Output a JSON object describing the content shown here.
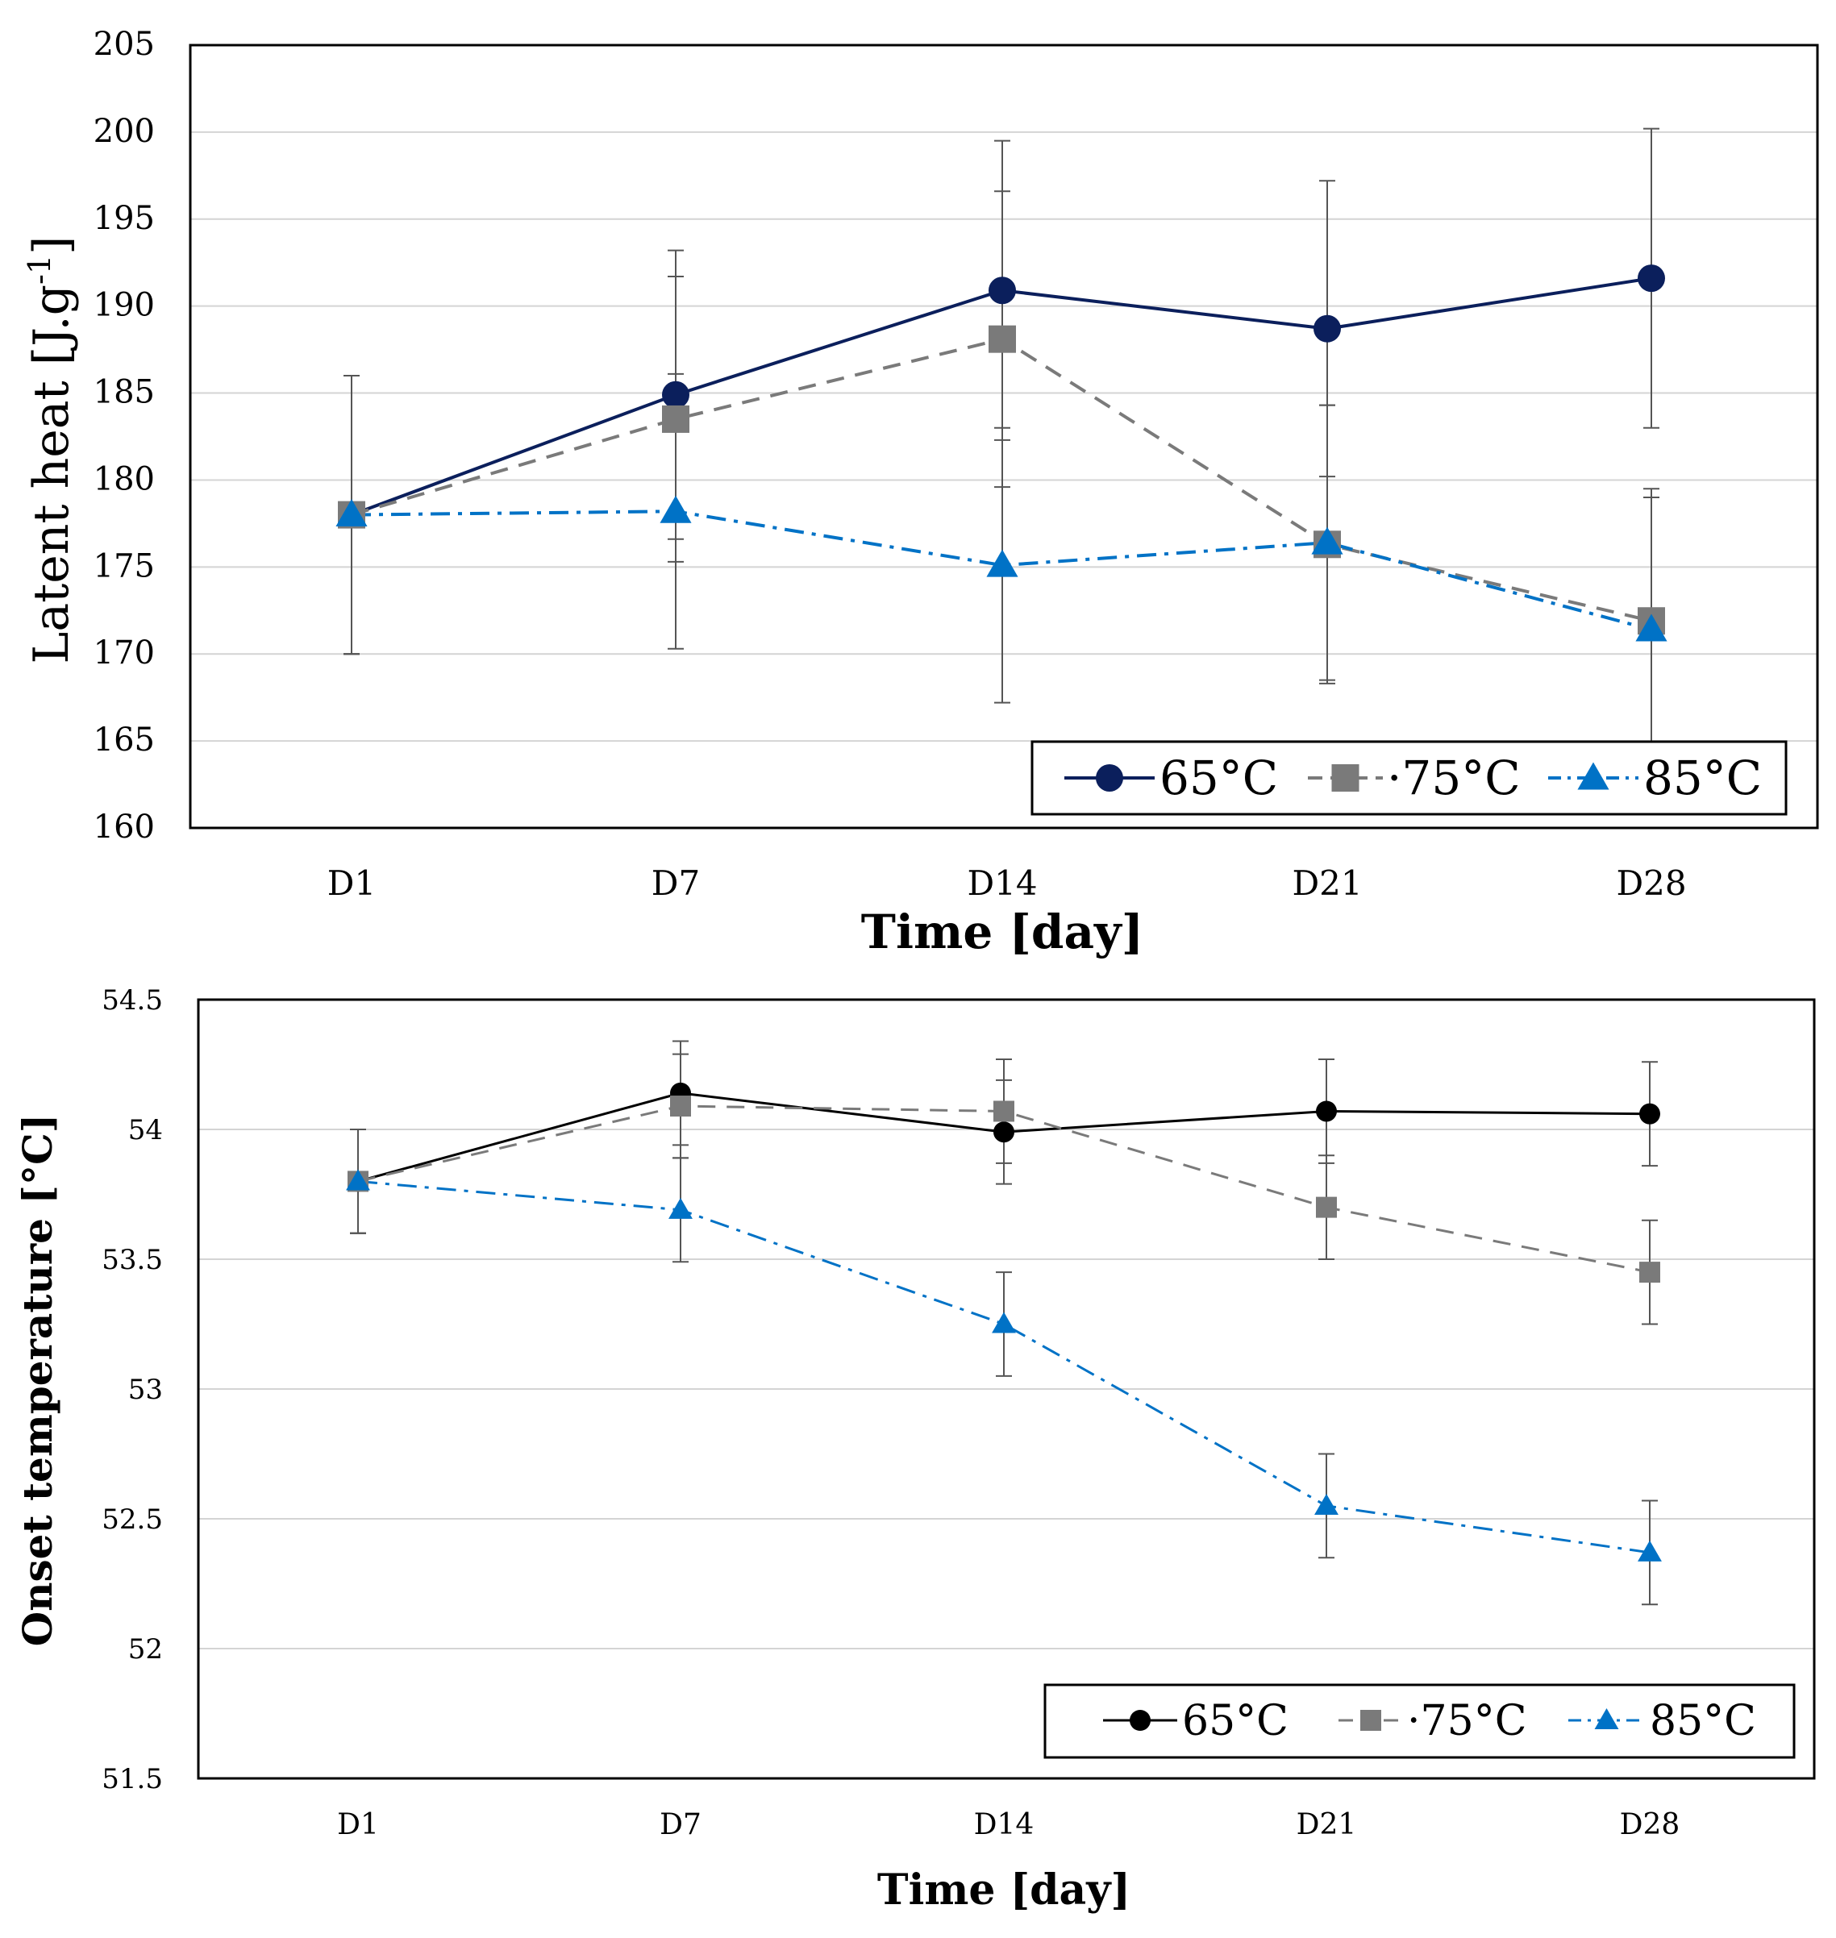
{
  "chart_data": [
    {
      "type": "line",
      "title": "",
      "xlabel": "Time [day]",
      "ylabel_main": "Latent heat [J.g",
      "ylabel_sup": "-1",
      "ylabel_close": "]",
      "ylabel_full": "Latent heat [J.g-1]",
      "categories": [
        "D1",
        "D7",
        "D14",
        "D21",
        "D28"
      ],
      "ylim": [
        160,
        205
      ],
      "yticks": [
        "160",
        "165",
        "170",
        "175",
        "180",
        "185",
        "190",
        "195",
        "200",
        "205"
      ],
      "grid": true,
      "legend_position": "bottom-right",
      "series": [
        {
          "name": "65°C",
          "legend_label": "65°C",
          "color": "#0b1f5c",
          "marker": "circle",
          "dash": "solid",
          "values": [
            178.0,
            184.9,
            190.9,
            188.7,
            191.6
          ],
          "errors": [
            8.0,
            8.3,
            8.6,
            8.5,
            8.6
          ]
        },
        {
          "name": "75°C",
          "legend_label": "·75°C",
          "color": "#7a7a7a",
          "marker": "square",
          "dash": "dash",
          "values": [
            178.0,
            183.5,
            188.1,
            176.3,
            171.9
          ],
          "errors": [
            8.0,
            8.2,
            8.5,
            8.0,
            7.6
          ]
        },
        {
          "name": "85°C",
          "legend_label": "85°C",
          "color": "#0072c6",
          "marker": "triangle",
          "dash": "dashdot",
          "values": [
            178.0,
            178.2,
            175.1,
            176.4,
            171.4
          ],
          "errors": [
            8.0,
            7.9,
            7.9,
            7.9,
            7.6
          ]
        }
      ]
    },
    {
      "type": "line",
      "title": "",
      "xlabel": "Time [day]",
      "ylabel": "Onset temperature [°C]",
      "categories": [
        "D1",
        "D7",
        "D14",
        "D21",
        "D28"
      ],
      "ylim": [
        51.5,
        54.5
      ],
      "yticks": [
        "51.5",
        "52",
        "52.5",
        "53",
        "53.5",
        "54",
        "54.5"
      ],
      "grid": true,
      "legend_position": "bottom-right",
      "series": [
        {
          "name": "65°C",
          "legend_label": "65°C",
          "color": "#000000",
          "marker": "circle",
          "dash": "solid",
          "values": [
            53.8,
            54.14,
            53.99,
            54.07,
            54.06
          ],
          "errors": [
            0.2,
            0.2,
            0.2,
            0.2,
            0.2
          ]
        },
        {
          "name": "75°C",
          "legend_label": "·75°C",
          "color": "#7a7a7a",
          "marker": "square",
          "dash": "dash",
          "values": [
            53.8,
            54.09,
            54.07,
            53.7,
            53.45
          ],
          "errors": [
            0.2,
            0.2,
            0.2,
            0.2,
            0.2
          ]
        },
        {
          "name": "85°C",
          "legend_label": "85°C",
          "color": "#0072c6",
          "marker": "triangle",
          "dash": "dashdot",
          "values": [
            53.8,
            53.69,
            53.25,
            52.55,
            52.37
          ],
          "errors": [
            0.2,
            0.2,
            0.2,
            0.2,
            0.2
          ]
        }
      ]
    }
  ]
}
